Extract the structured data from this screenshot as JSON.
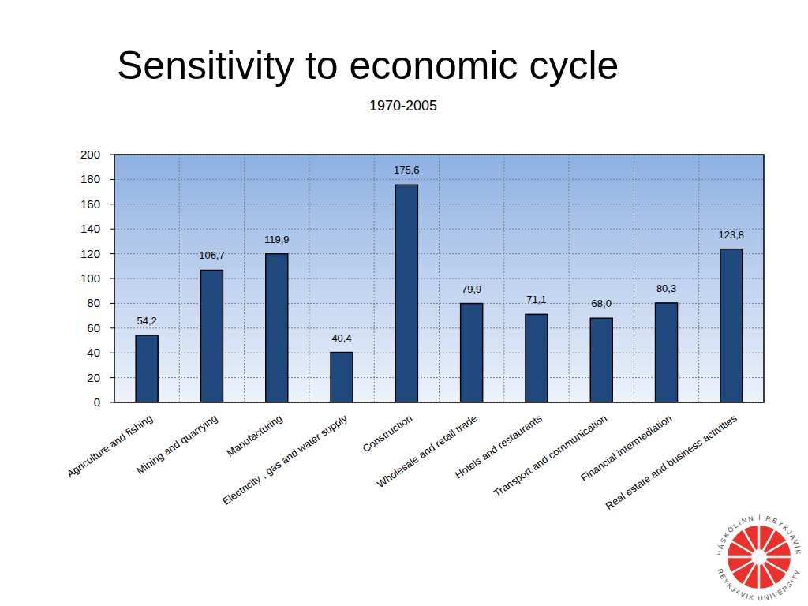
{
  "chart_data": {
    "type": "bar",
    "title": "Sensitivity to economic cycle",
    "subtitle": "1970-2005",
    "categories": [
      "Agriculture and fishing",
      "Mining and quarrying",
      "Manufacturing",
      "Electricity , gas and water supply",
      "Construction",
      "Wholesale and retail trade",
      "Hotels and restaurants",
      "Transport and communication",
      "Financial intermediation",
      "Real estate and business activities"
    ],
    "values": [
      54.2,
      106.7,
      119.9,
      40.4,
      175.6,
      79.9,
      71.1,
      68.0,
      80.3,
      123.8
    ],
    "value_labels": [
      "54,2",
      "106,7",
      "119,9",
      "40,4",
      "175,6",
      "79,9",
      "71,1",
      "68,0",
      "80,3",
      "123,8"
    ],
    "color": "#1f497d",
    "ylim": [
      0,
      200
    ],
    "yticks": [
      0,
      20,
      40,
      60,
      80,
      100,
      120,
      140,
      160,
      180,
      200
    ],
    "grid": true,
    "data_labels": true
  },
  "logo": {
    "top_text": "HÁSKÓLINN Í REYKJAVÍK",
    "bottom_text": "REYKJAVIK UNIVERSITY"
  }
}
